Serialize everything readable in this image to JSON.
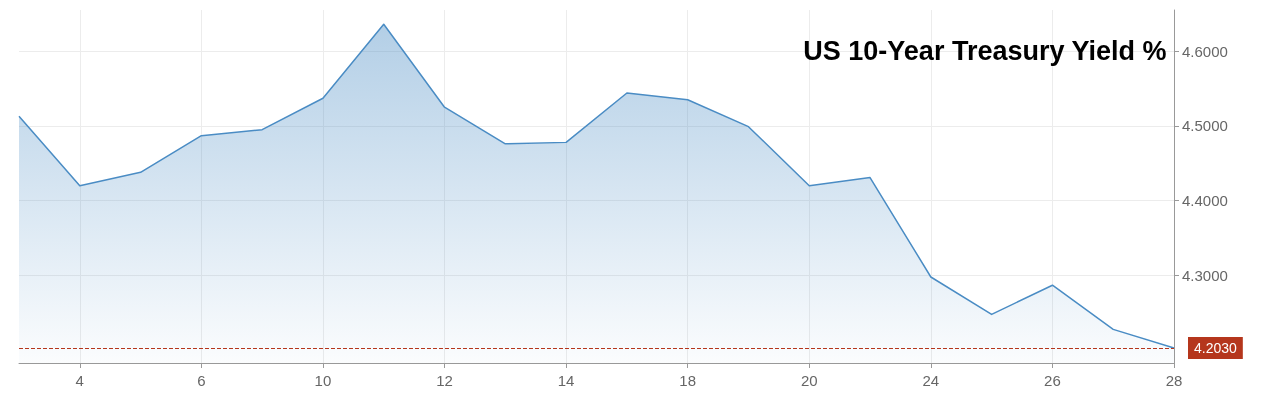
{
  "chart_data": {
    "type": "area",
    "title": "US 10-Year Treasury Yield %",
    "categories": [
      null,
      "4",
      null,
      "6",
      null,
      "10",
      null,
      "12",
      null,
      "14",
      null,
      "18",
      null,
      "20",
      null,
      "24",
      null,
      "26",
      null,
      "28"
    ],
    "series": [
      {
        "color": "#4a8cc4",
        "values": [
          4.513,
          4.42,
          4.438,
          4.487,
          4.495,
          4.537,
          4.636,
          4.525,
          4.476,
          4.478,
          4.544,
          4.535,
          4.499,
          4.42,
          4.431,
          4.298,
          4.248,
          4.287,
          4.228,
          4.203
        ]
      }
    ],
    "ylim": [
      4.183,
      4.655
    ],
    "yticks": [
      {
        "value": 4.3,
        "label": "4.3000"
      },
      {
        "value": 4.4,
        "label": "4.4000"
      },
      {
        "value": 4.5,
        "label": "4.5000"
      },
      {
        "value": 4.6,
        "label": "4.6000"
      }
    ],
    "ref_lines": [
      {
        "axis": "y",
        "value": 4.203,
        "label": "4.2030",
        "color": "#b5361c",
        "line_style": "dashed"
      }
    ],
    "grid": true,
    "marker": "none",
    "line_style": "solid"
  }
}
